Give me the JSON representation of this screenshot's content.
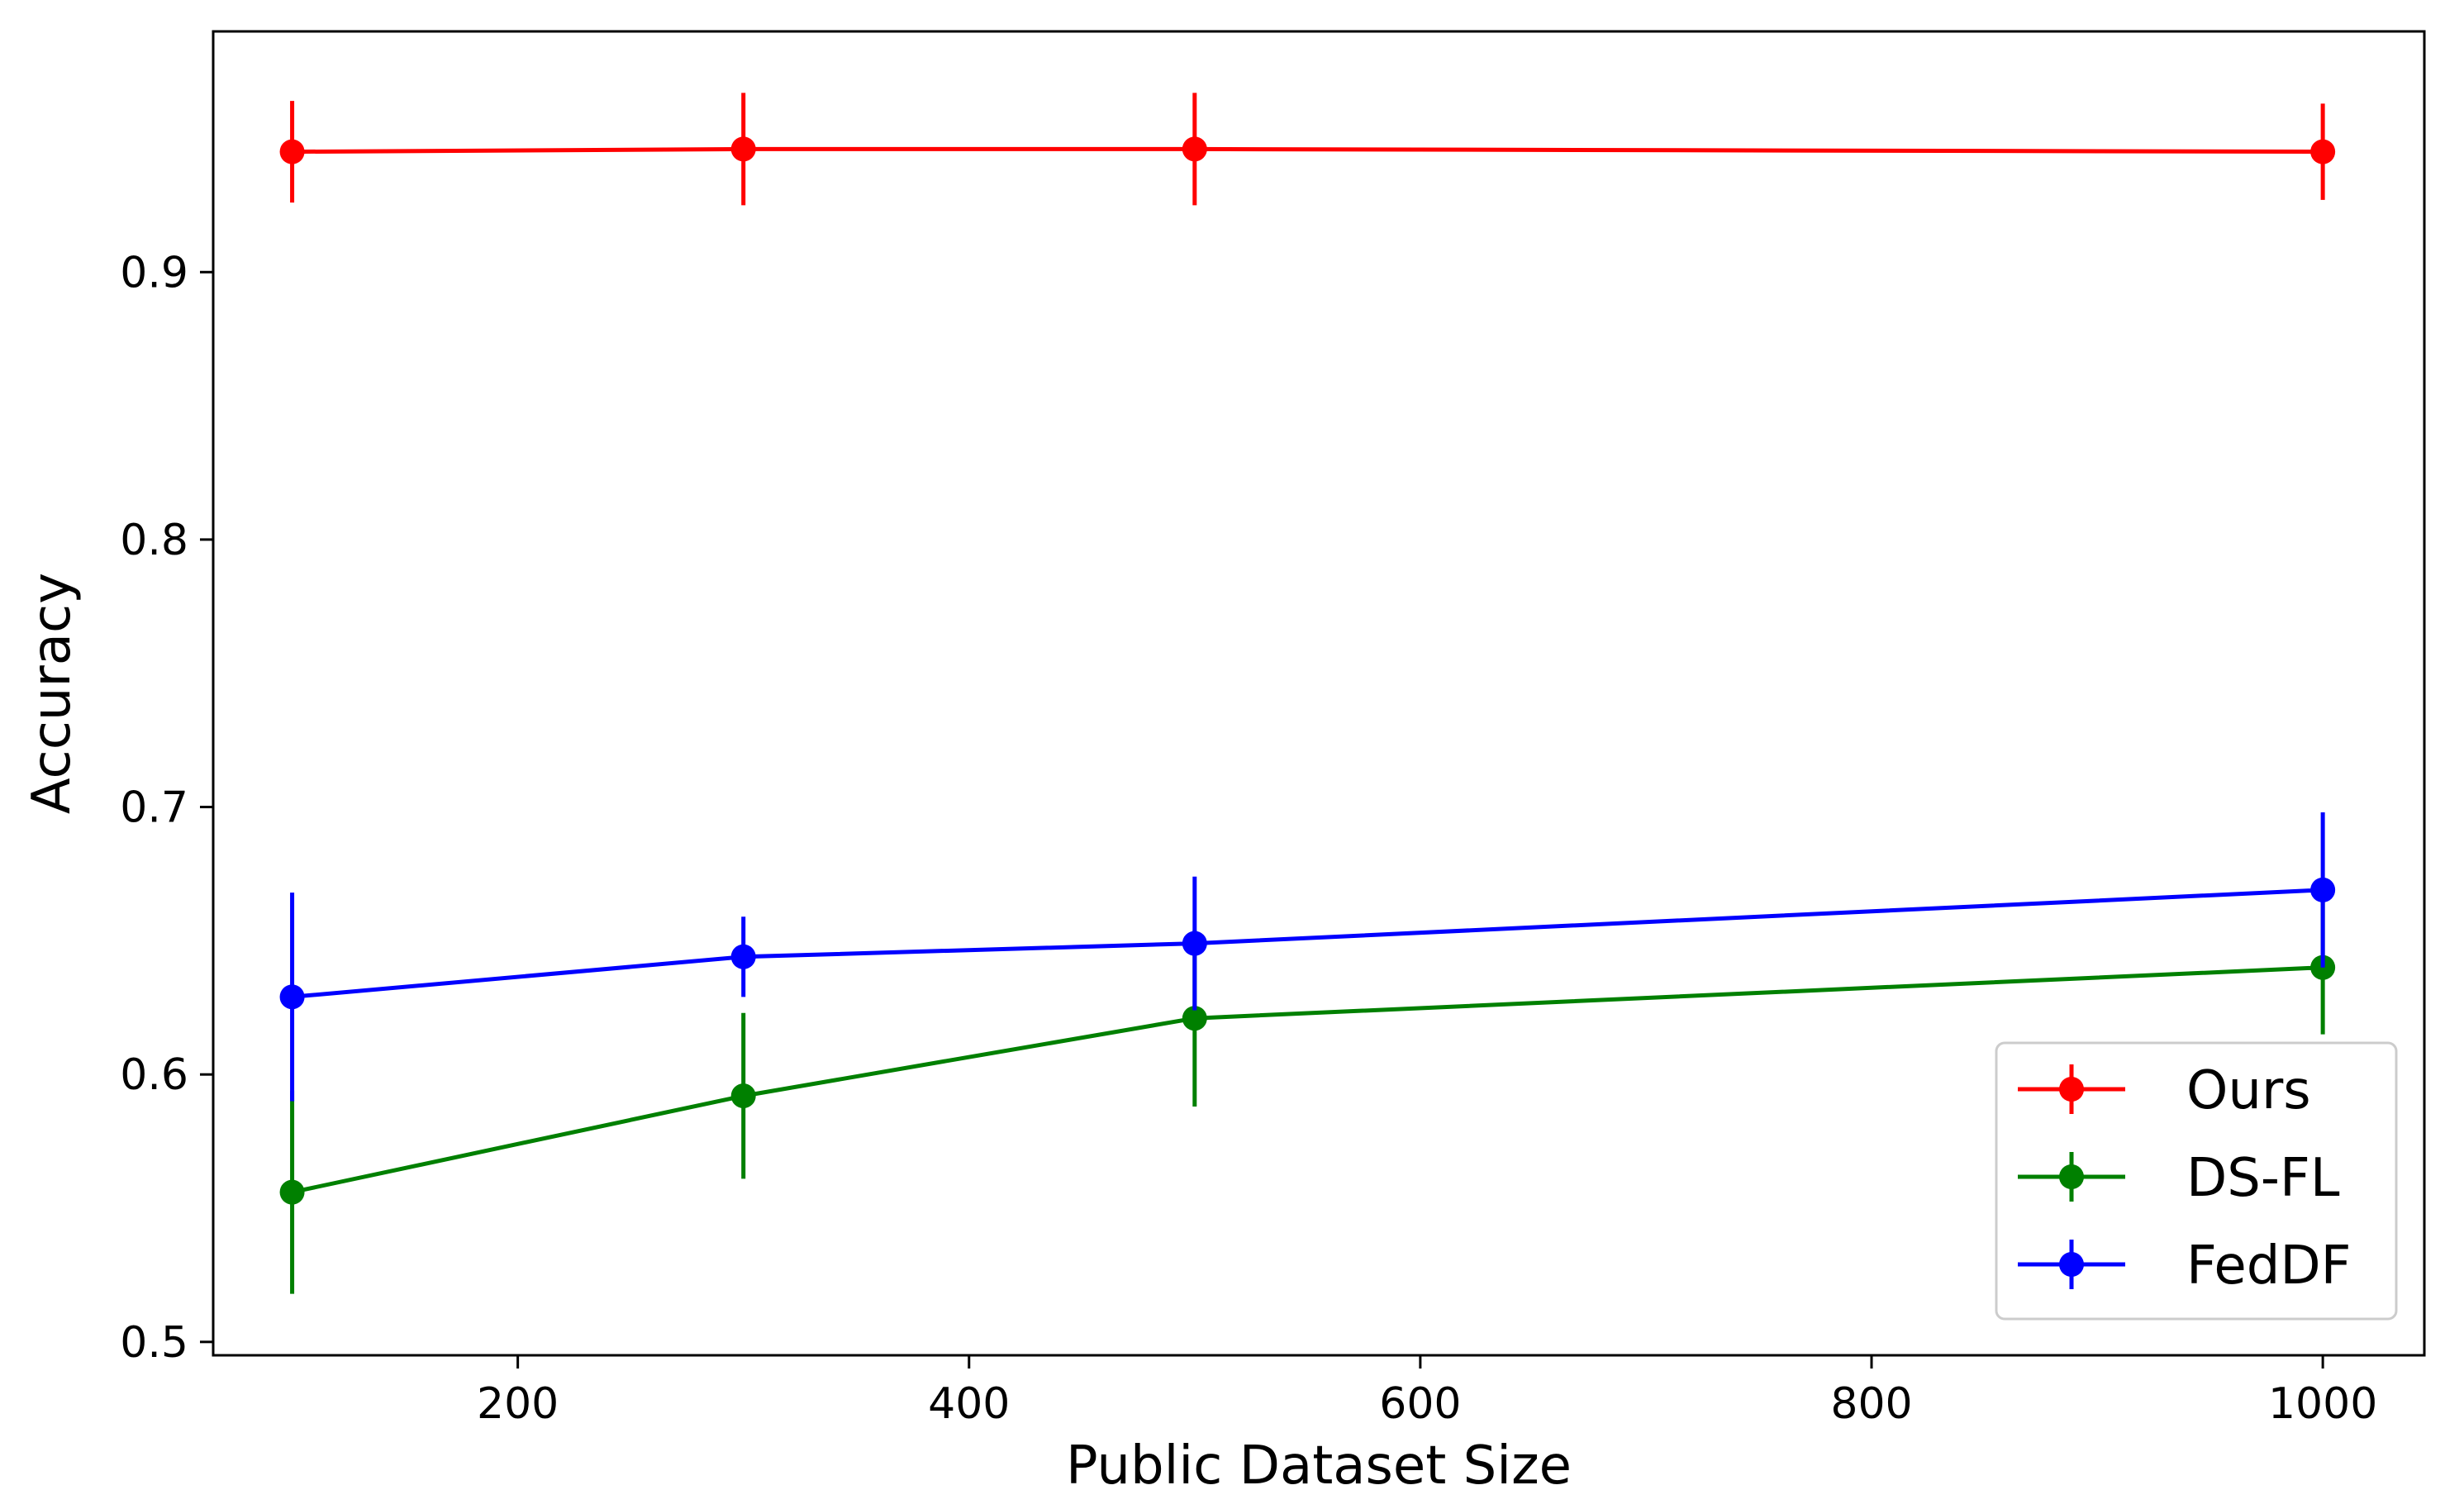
{
  "chart_data": {
    "type": "line",
    "title": "",
    "xlabel": "Public Dataset Size",
    "ylabel": "Accuracy",
    "xlim": [
      65,
      1045
    ],
    "ylim": [
      0.495,
      0.99
    ],
    "xticks": [
      200,
      400,
      600,
      800,
      1000
    ],
    "yticks": [
      0.5,
      0.6,
      0.7,
      0.8,
      0.9
    ],
    "grid": false,
    "legend": "lower-right",
    "x": [
      100,
      300,
      500,
      1000
    ],
    "series": [
      {
        "name": "Ours",
        "color": "#ff0000",
        "marker": "circle",
        "values": [
          0.945,
          0.946,
          0.946,
          0.945
        ],
        "errors": [
          0.019,
          0.021,
          0.021,
          0.018
        ]
      },
      {
        "name": "DS-FL",
        "color": "#008000",
        "marker": "circle",
        "values": [
          0.556,
          0.592,
          0.621,
          0.64
        ],
        "errors": [
          0.038,
          0.031,
          0.033,
          0.025
        ]
      },
      {
        "name": "FedDF",
        "color": "#0000ff",
        "marker": "circle",
        "values": [
          0.629,
          0.644,
          0.649,
          0.669
        ],
        "errors": [
          0.039,
          0.015,
          0.025,
          0.029
        ]
      }
    ]
  }
}
